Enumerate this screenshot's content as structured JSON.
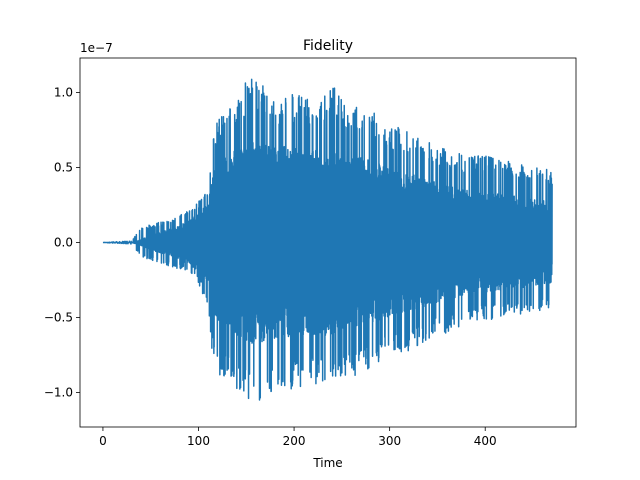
{
  "chart_data": {
    "type": "line",
    "title": "Fidelity",
    "xlabel": "Time",
    "ylabel": "",
    "y_offset_label": "1e−7",
    "xlim": [
      -24,
      495
    ],
    "ylim": [
      -1.23,
      1.23
    ],
    "x_ticks": [
      0,
      100,
      200,
      300,
      400
    ],
    "x_tick_labels": [
      "0",
      "100",
      "200",
      "300",
      "400"
    ],
    "y_ticks": [
      -1.0,
      -0.5,
      0.0,
      0.5,
      1.0
    ],
    "y_tick_labels": [
      "−1.0",
      "−0.5",
      "0.0",
      "0.5",
      "1.0"
    ],
    "grid": false,
    "legend": "none",
    "series": [
      {
        "color": "#1f77b4",
        "x_range": [
          0,
          470
        ],
        "x": [
          0,
          30,
          40,
          50,
          60,
          70,
          80,
          90,
          100,
          110,
          115,
          120,
          130,
          140,
          150,
          160,
          170,
          180,
          190,
          200,
          220,
          240,
          260,
          280,
          300,
          320,
          340,
          360,
          380,
          400,
          420,
          440,
          460,
          470
        ],
        "upper": [
          0.0,
          0.01,
          0.1,
          0.12,
          0.14,
          0.16,
          0.18,
          0.22,
          0.28,
          0.36,
          0.75,
          0.85,
          0.9,
          0.95,
          1.08,
          1.1,
          1.05,
          0.95,
          0.98,
          1.0,
          0.95,
          1.05,
          0.92,
          0.9,
          0.78,
          0.75,
          0.68,
          0.62,
          0.58,
          0.58,
          0.55,
          0.52,
          0.5,
          0.48
        ],
        "lower": [
          0.0,
          -0.01,
          -0.1,
          -0.12,
          -0.14,
          -0.16,
          -0.18,
          -0.22,
          -0.28,
          -0.42,
          -0.78,
          -0.9,
          -0.92,
          -0.98,
          -1.05,
          -1.1,
          -1.05,
          -0.98,
          -1.02,
          -0.98,
          -0.95,
          -0.92,
          -0.9,
          -0.85,
          -0.75,
          -0.72,
          -0.65,
          -0.6,
          -0.55,
          -0.52,
          -0.5,
          -0.48,
          -0.47,
          -0.46
        ],
        "fill": [
          0.0,
          0.0,
          0.02,
          0.05,
          0.07,
          0.09,
          0.11,
          0.15,
          0.2,
          0.26,
          0.46,
          0.55,
          0.58,
          0.62,
          0.66,
          0.68,
          0.66,
          0.64,
          0.64,
          0.63,
          0.62,
          0.62,
          0.58,
          0.55,
          0.5,
          0.46,
          0.42,
          0.38,
          0.35,
          0.33,
          0.32,
          0.3,
          0.28,
          0.27
        ]
      }
    ]
  }
}
